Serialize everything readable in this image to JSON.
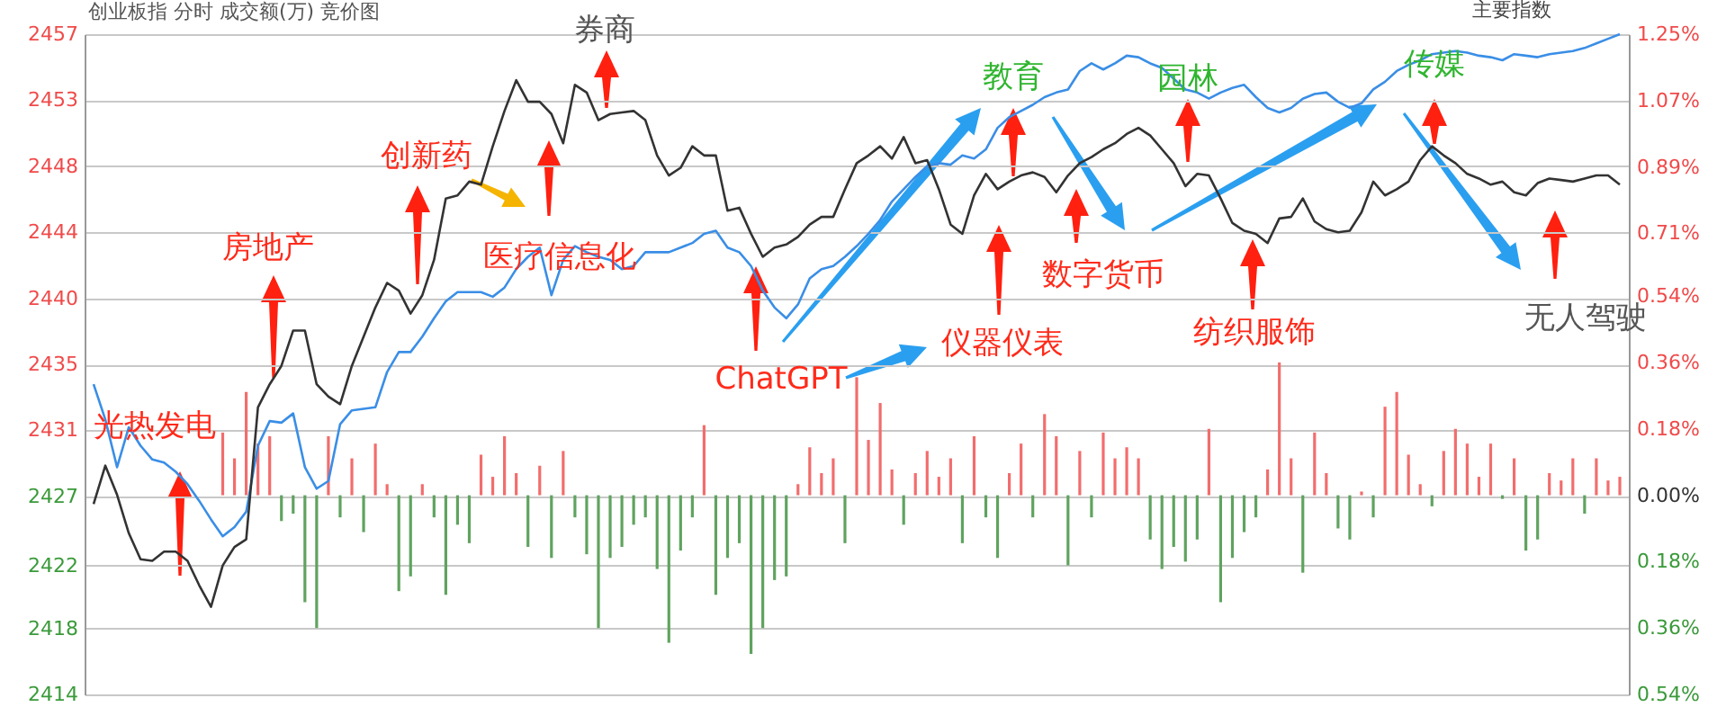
{
  "chart_data": {
    "type": "line",
    "title": "创业板指  分时 成交额(万) 竞价图",
    "categories": [
      null,
      null,
      null,
      null,
      null,
      null,
      null,
      null,
      null,
      null,
      null,
      null,
      null,
      null,
      null,
      null,
      null,
      null,
      null,
      null,
      null,
      null,
      null,
      null,
      null,
      null,
      null,
      null,
      null,
      null,
      null,
      null,
      null,
      null,
      null,
      null,
      null,
      null,
      null,
      null,
      null,
      null,
      null,
      null,
      null,
      null,
      null,
      null,
      null,
      null,
      null,
      null,
      null,
      null,
      null,
      null,
      null,
      null,
      null,
      null,
      null,
      null,
      null,
      null,
      null,
      null,
      null,
      null,
      null,
      null,
      null,
      null,
      null,
      null,
      null,
      null,
      null,
      null,
      null,
      null,
      null,
      null,
      null,
      null,
      null,
      null,
      null,
      null,
      null,
      null,
      null,
      null,
      null,
      null,
      null,
      null,
      null,
      null,
      null,
      null,
      null,
      null,
      null,
      null,
      null,
      null,
      null,
      null,
      null,
      null,
      null,
      null,
      null,
      null,
      null,
      null,
      null,
      null,
      null,
      null,
      null,
      null,
      null,
      null,
      null,
      null,
      null,
      null,
      null,
      null,
      null
    ],
    "series": [
      {
        "type": "bar",
        "axis": "y2",
        "color": "#f26d6d",
        "values": [
          null,
          null,
          null,
          null,
          null,
          null,
          null,
          null,
          null,
          null,
          null,
          0.17,
          0.1,
          0.28,
          0.14,
          0.16,
          null,
          null,
          null,
          null,
          0.16,
          null,
          0.1,
          null,
          0.14,
          0.03,
          null,
          null,
          0.03,
          null,
          null,
          null,
          null,
          0.11,
          0.05,
          0.16,
          0.06,
          null,
          0.08,
          null,
          0.12,
          null,
          null,
          null,
          null,
          null,
          null,
          null,
          null,
          null,
          null,
          null,
          0.19,
          null,
          null,
          null,
          null,
          null,
          null,
          null,
          0.03,
          0.13,
          0.06,
          0.1,
          null,
          0.32,
          0.15,
          0.25,
          0.07,
          null,
          0.06,
          0.12,
          0.05,
          0.1,
          null,
          0.16,
          null,
          null,
          0.06,
          0.14,
          null,
          0.22,
          0.16,
          null,
          0.12,
          null,
          0.17,
          0.1,
          0.13,
          0.1,
          null,
          null,
          null,
          null,
          null,
          0.18,
          null,
          null,
          null,
          null,
          0.07,
          0.36,
          0.1,
          null,
          0.17,
          0.06,
          null,
          null,
          0.01,
          null,
          0.24,
          0.28,
          0.11,
          0.03,
          null,
          0.12,
          0.18,
          0.14,
          0.05,
          0.14,
          null,
          0.1,
          null,
          null,
          0.06,
          0.04,
          0.1,
          null,
          0.1,
          0.04,
          0.05
        ]
      },
      {
        "type": "bar",
        "axis": "y2",
        "color": "#5fa35f",
        "values": [
          null,
          null,
          null,
          null,
          null,
          null,
          null,
          null,
          null,
          null,
          null,
          null,
          null,
          null,
          null,
          null,
          -0.07,
          -0.05,
          -0.29,
          -0.36,
          null,
          -0.06,
          null,
          -0.1,
          null,
          null,
          -0.26,
          -0.22,
          null,
          -0.06,
          -0.27,
          -0.08,
          -0.13,
          null,
          null,
          null,
          null,
          -0.14,
          null,
          -0.17,
          null,
          -0.06,
          -0.16,
          -0.36,
          -0.17,
          -0.14,
          -0.08,
          -0.06,
          -0.2,
          -0.4,
          -0.15,
          -0.06,
          null,
          -0.27,
          -0.17,
          -0.13,
          -0.43,
          -0.36,
          -0.23,
          -0.22,
          null,
          null,
          null,
          null,
          -0.13,
          null,
          null,
          null,
          null,
          -0.08,
          null,
          null,
          null,
          null,
          -0.13,
          null,
          -0.06,
          -0.17,
          null,
          null,
          -0.06,
          null,
          null,
          -0.19,
          null,
          -0.06,
          null,
          null,
          null,
          null,
          -0.12,
          -0.2,
          -0.14,
          -0.18,
          -0.12,
          null,
          -0.29,
          -0.17,
          -0.1,
          -0.06,
          null,
          null,
          null,
          -0.21,
          null,
          null,
          -0.09,
          -0.12,
          null,
          -0.06,
          null,
          null,
          null,
          null,
          -0.03,
          null,
          null,
          null,
          null,
          null,
          -0.01,
          null,
          -0.15,
          -0.12,
          null,
          null,
          null,
          -0.05,
          null,
          null,
          null
        ]
      },
      {
        "type": "line",
        "color": "#3a8ee6",
        "values": [
          2434.2,
          2431.9,
          2428.8,
          2431.4,
          2430.2,
          2429.3,
          2429.1,
          2428.5,
          2427.7,
          2426.6,
          2425.4,
          2424.3,
          2424.9,
          2425.9,
          2430.2,
          2431.8,
          2431.7,
          2432.3,
          2428.8,
          2427.4,
          2427.9,
          2431.6,
          2432.5,
          2432.6,
          2432.7,
          2435.0,
          2436.3,
          2436.3,
          2437.3,
          2438.5,
          2439.6,
          2440.2,
          2440.2,
          2440.2,
          2439.9,
          2440.5,
          2441.7,
          2442.5,
          2443.1,
          2440.0,
          2442.3,
          2443.2,
          2442.8,
          2442.5,
          2442.3,
          2441.7,
          2441.9,
          2442.8,
          2442.8,
          2442.8,
          2443.1,
          2443.4,
          2444.0,
          2444.2,
          2443.1,
          2442.8,
          2441.9,
          2440.3,
          2439.2,
          2438.5,
          2439.4,
          2441.1,
          2441.7,
          2441.9,
          2442.5,
          2443.2,
          2444.0,
          2444.9,
          2446.1,
          2446.9,
          2447.7,
          2448.4,
          2448.6,
          2448.5,
          2449.1,
          2448.9,
          2449.5,
          2450.9,
          2451.6,
          2452.0,
          2452.4,
          2452.9,
          2453.2,
          2453.4,
          2454.6,
          2455.1,
          2454.7,
          2455.1,
          2455.6,
          2455.5,
          2455.1,
          2454.8,
          2454.1,
          2453.4,
          2453.2,
          2452.8,
          2453.2,
          2453.5,
          2453.7,
          2452.9,
          2452.2,
          2451.9,
          2452.2,
          2452.8,
          2453.1,
          2453.2,
          2452.6,
          2452.2,
          2452.5,
          2453.4,
          2453.9,
          2454.6,
          2455.0,
          2455.3,
          2455.7,
          2455.8,
          2455.9,
          2455.8,
          2455.6,
          2455.5,
          2455.3,
          2455.7,
          2455.6,
          2455.5,
          2455.7,
          2455.8,
          2455.9,
          2456.1,
          2456.4,
          2456.7,
          2457.0
        ]
      },
      {
        "type": "line",
        "color": "#333333",
        "values": [
          2426.4,
          2428.9,
          2427.0,
          2424.5,
          2422.8,
          2422.7,
          2423.3,
          2423.3,
          2422.7,
          2421.1,
          2419.7,
          2422.4,
          2423.6,
          2424.1,
          2432.7,
          2434.2,
          2435.4,
          2437.7,
          2437.7,
          2434.2,
          2433.4,
          2432.9,
          2435.4,
          2437.3,
          2439.2,
          2440.8,
          2440.3,
          2438.8,
          2440.0,
          2442.3,
          2446.3,
          2446.5,
          2447.4,
          2447.2,
          2449.7,
          2452.0,
          2454.0,
          2452.6,
          2452.6,
          2451.8,
          2449.9,
          2453.7,
          2453.2,
          2451.4,
          2451.8,
          2451.9,
          2452.0,
          2451.4,
          2449.1,
          2447.8,
          2448.3,
          2449.7,
          2449.1,
          2449.1,
          2445.5,
          2445.7,
          2444.0,
          2442.5,
          2443.1,
          2443.3,
          2443.8,
          2444.6,
          2445.1,
          2445.1,
          2446.9,
          2448.6,
          2449.1,
          2449.7,
          2448.9,
          2450.3,
          2448.6,
          2448.8,
          2446.9,
          2444.6,
          2444.0,
          2446.5,
          2447.9,
          2446.9,
          2447.4,
          2447.8,
          2448.0,
          2447.7,
          2446.7,
          2447.8,
          2448.6,
          2449.0,
          2449.5,
          2449.9,
          2450.5,
          2450.9,
          2450.4,
          2449.5,
          2448.6,
          2447.1,
          2447.9,
          2447.8,
          2446.3,
          2444.7,
          2444.2,
          2444.0,
          2443.4,
          2445.0,
          2445.1,
          2446.3,
          2444.8,
          2444.3,
          2444.1,
          2444.2,
          2445.4,
          2447.4,
          2446.5,
          2446.9,
          2447.4,
          2448.8,
          2449.7,
          2449.1,
          2448.6,
          2447.9,
          2447.6,
          2447.2,
          2447.4,
          2446.7,
          2446.5,
          2447.3,
          2447.6,
          2447.5,
          2447.4,
          2447.6,
          2447.8,
          2447.8,
          2447.2
        ]
      }
    ],
    "ylim": [
      2414,
      2457
    ],
    "yticks": [
      2414,
      {
        "value": 2418.3,
        "label": "2418"
      },
      {
        "value": 2422.4,
        "label": "2422"
      },
      {
        "value": 2426.9,
        "label": "2427"
      },
      {
        "value": 2431.2,
        "label": "2431"
      },
      {
        "value": 2435.5,
        "label": "2435"
      },
      {
        "value": 2439.8,
        "label": "2440"
      },
      {
        "value": 2444.1,
        "label": "2444"
      },
      {
        "value": 2448.4,
        "label": "2448"
      },
      {
        "value": 2452.7,
        "label": "2453"
      },
      2457
    ],
    "y2lim": [
      -0.54,
      1.25
    ],
    "y2ticks": [
      {
        "value": -0.54,
        "label": "0.54%"
      },
      {
        "value": -0.36,
        "label": "0.36%"
      },
      {
        "value": -0.18,
        "label": "0.18%"
      },
      {
        "value": 0,
        "label": "0.00%"
      },
      {
        "value": 0.18,
        "label": "0.18%"
      },
      {
        "value": 0.36,
        "label": "0.36%"
      },
      {
        "value": 0.54,
        "label": "0.54%"
      },
      {
        "value": 0.71,
        "label": "0.71%"
      },
      {
        "value": 0.89,
        "label": "0.89%"
      },
      {
        "value": 1.07,
        "label": "1.07%"
      },
      {
        "value": 1.25,
        "label": "1.25%"
      }
    ],
    "grid": "y",
    "annotations": [
      "光热发电",
      "房地产",
      "创新药",
      "医疗信息化",
      "券商",
      "ChatGPT",
      "仪器仪表",
      "教育",
      "数字货币",
      "园林",
      "纺织服饰",
      "传媒",
      "无人驾驶",
      "主要指数"
    ]
  }
}
